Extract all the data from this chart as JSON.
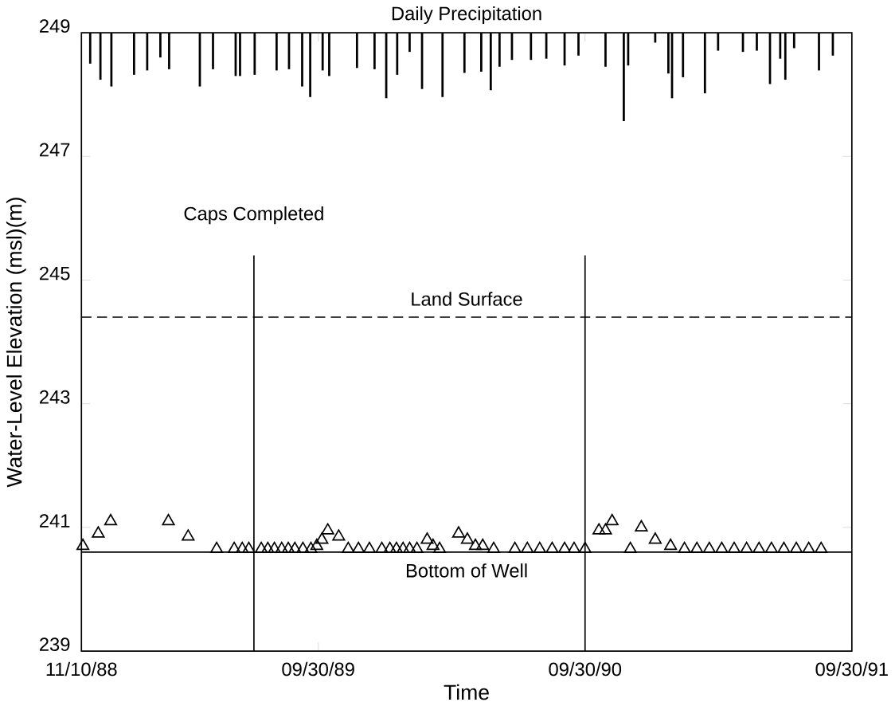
{
  "chart_data": {
    "type": "scatter",
    "title": "Daily Precipitation",
    "xlabel": "Time",
    "ylabel": "Water-Level Elevation (msl)(m)",
    "xlim": [
      "1988-11-10",
      "1991-09-30"
    ],
    "ylim": [
      239,
      249
    ],
    "xticks": [
      {
        "value": "1988-11-10",
        "label": "11/10/88"
      },
      {
        "value": "1989-09-30",
        "label": "09/30/89"
      },
      {
        "value": "1990-09-30",
        "label": "09/30/90"
      },
      {
        "value": "1991-09-30",
        "label": "09/30/91"
      }
    ],
    "yticks": [
      {
        "value": 239,
        "label": "239"
      },
      {
        "value": 241,
        "label": "241"
      },
      {
        "value": 243,
        "label": "243"
      },
      {
        "value": 245,
        "label": "245"
      },
      {
        "value": 247,
        "label": "247"
      },
      {
        "value": 249,
        "label": "249"
      }
    ],
    "ref_lines": [
      {
        "axis": "x",
        "value": "1989-07-04",
        "label": "Caps Completed",
        "color": "#000000",
        "line_style": "solid"
      },
      {
        "axis": "x",
        "value": "1990-09-30",
        "label": null,
        "color": "#000000",
        "line_style": "solid"
      },
      {
        "axis": "y",
        "value": 244.4,
        "label": "Land Surface",
        "color": "#000000",
        "line_style": "dashed"
      },
      {
        "axis": "y",
        "value": 240.6,
        "label": "Bottom of Well",
        "color": "#000000",
        "line_style": "solid"
      }
    ],
    "series": [
      {
        "color": "#000000",
        "marker": "triangle",
        "x": [
          "1988-11-12",
          "1988-12-03",
          "1988-12-20",
          "1989-03-09",
          "1989-04-05",
          "1989-05-14",
          "1989-06-07",
          "1989-06-18",
          "1989-06-27",
          "1989-07-14",
          "1989-07-23",
          "1989-08-01",
          "1989-08-11",
          "1989-08-20",
          "1989-08-29",
          "1989-09-09",
          "1989-09-20",
          "1989-09-28",
          "1989-10-05",
          "1989-10-13",
          "1989-10-28",
          "1989-11-10",
          "1989-11-24",
          "1989-12-09",
          "1989-12-26",
          "1990-01-06",
          "1990-01-15",
          "1990-01-24",
          "1990-02-02",
          "1990-02-12",
          "1990-02-26",
          "1990-03-06",
          "1990-03-15",
          "1990-04-10",
          "1990-04-22",
          "1990-05-03",
          "1990-05-13",
          "1990-05-28",
          "1990-06-26",
          "1990-07-13",
          "1990-07-30",
          "1990-08-16",
          "1990-09-02",
          "1990-09-15",
          "1990-09-30",
          "1990-10-19",
          "1990-10-28",
          "1990-11-06",
          "1990-12-01",
          "1990-12-16",
          "1991-01-04",
          "1991-01-25",
          "1991-02-13",
          "1991-03-02",
          "1991-03-19",
          "1991-04-05",
          "1991-04-22",
          "1991-05-09",
          "1991-05-26",
          "1991-06-12",
          "1991-06-29",
          "1991-07-16",
          "1991-08-02",
          "1991-08-19"
        ],
        "values": [
          240.7,
          240.9,
          241.1,
          241.1,
          240.85,
          240.65,
          240.65,
          240.65,
          240.65,
          240.65,
          240.65,
          240.65,
          240.65,
          240.65,
          240.65,
          240.65,
          240.65,
          240.7,
          240.8,
          240.95,
          240.85,
          240.65,
          240.65,
          240.65,
          240.65,
          240.65,
          240.65,
          240.65,
          240.65,
          240.65,
          240.8,
          240.7,
          240.65,
          240.9,
          240.8,
          240.7,
          240.7,
          240.65,
          240.65,
          240.65,
          240.65,
          240.65,
          240.65,
          240.65,
          240.65,
          240.95,
          240.95,
          241.1,
          240.65,
          241.0,
          240.8,
          240.7,
          240.65,
          240.65,
          240.65,
          240.65,
          240.65,
          240.65,
          240.65,
          240.65,
          240.65,
          240.65,
          240.65,
          240.65
        ]
      },
      {
        "type": "bar",
        "color": "#000000",
        "x": [
          "1988-11-22",
          "1988-12-06",
          "1988-12-21",
          "1989-01-21",
          "1989-02-08",
          "1989-02-26",
          "1989-03-10",
          "1989-04-21",
          "1989-05-09",
          "1989-06-09",
          "1989-06-15",
          "1989-07-05",
          "1989-08-04",
          "1989-08-21",
          "1989-09-08",
          "1989-09-19",
          "1989-10-06",
          "1989-10-15",
          "1989-11-22",
          "1989-12-16",
          "1990-01-01",
          "1990-01-16",
          "1990-02-02",
          "1990-02-19",
          "1990-03-19",
          "1990-04-18",
          "1990-05-11",
          "1990-05-24",
          "1990-06-05",
          "1990-06-22",
          "1990-07-18",
          "1990-08-08",
          "1990-09-02",
          "1990-09-21",
          "1990-10-28",
          "1990-11-22",
          "1990-11-28",
          "1991-01-04",
          "1991-01-22",
          "1991-01-27",
          "1991-02-11",
          "1991-03-13",
          "1991-03-31",
          "1991-05-04",
          "1991-05-23",
          "1991-06-10",
          "1991-06-24",
          "1991-07-01",
          "1991-07-13",
          "1991-08-16",
          "1991-09-04"
        ],
        "base": [
          249,
          249,
          249,
          249,
          249,
          249,
          249,
          249,
          249,
          249,
          249,
          249,
          249,
          249,
          249,
          249,
          249,
          249,
          249,
          249,
          249,
          249,
          249,
          249,
          249,
          249,
          249,
          249,
          249,
          249,
          249,
          249,
          249,
          249,
          249,
          249,
          249,
          249,
          249,
          249,
          249,
          249,
          249,
          249,
          249,
          249,
          249,
          249,
          249,
          249,
          249
        ],
        "values": [
          -0.5,
          -0.76,
          -0.87,
          -0.68,
          -0.61,
          -0.4,
          -0.59,
          -0.87,
          -0.59,
          -0.7,
          -0.7,
          -0.68,
          -0.61,
          -0.59,
          -0.87,
          -1.04,
          -0.61,
          -0.7,
          -0.57,
          -0.59,
          -1.06,
          -0.68,
          -0.31,
          -0.91,
          -1.04,
          -0.65,
          -0.63,
          -0.93,
          -0.55,
          -0.44,
          -0.44,
          -0.42,
          -0.53,
          -0.37,
          -0.55,
          -1.43,
          -0.53,
          -0.16,
          -0.66,
          -1.06,
          -0.72,
          -0.98,
          -0.29,
          -0.31,
          -0.29,
          -0.83,
          -0.42,
          -0.76,
          -0.25,
          -0.61,
          -0.37
        ]
      }
    ]
  }
}
